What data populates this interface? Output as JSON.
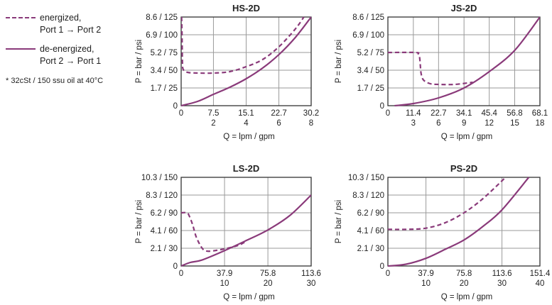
{
  "colors": {
    "series": "#8a3a7a",
    "grid": "#9a9a9a",
    "frame": "#333333"
  },
  "legend": {
    "items": [
      {
        "style": "dashed",
        "line1": "energized,",
        "line2": "Port 1 → Port 2"
      },
      {
        "style": "solid",
        "line1": "de-energized,",
        "line2": "Port 2 → Port 1"
      }
    ],
    "note": "* 32cSt / 150 ssu oil at 40°C"
  },
  "chart_data": [
    {
      "type": "line",
      "title": "HS-2D",
      "xlabel": "Q = lpm / gpm",
      "ylabel": "P = bar / psi",
      "xlim": [
        0,
        30.2
      ],
      "ylim": [
        0,
        125
      ],
      "grid": true,
      "x_ticks": [
        {
          "v": 0,
          "lpm": "0",
          "gpm": ""
        },
        {
          "v": 7.5,
          "lpm": "7.5",
          "gpm": "2"
        },
        {
          "v": 15.1,
          "lpm": "15.1",
          "gpm": "4"
        },
        {
          "v": 22.7,
          "lpm": "22.7",
          "gpm": "6"
        },
        {
          "v": 30.2,
          "lpm": "30.2",
          "gpm": "8"
        }
      ],
      "y_ticks": [
        {
          "v": 0,
          "label": "0"
        },
        {
          "v": 25,
          "label": "1.7 / 25"
        },
        {
          "v": 50,
          "label": "3.4 / 50"
        },
        {
          "v": 75,
          "label": "5.2 / 75"
        },
        {
          "v": 100,
          "label": "6.9 / 100"
        },
        {
          "v": 125,
          "label": "8.6 / 125"
        }
      ],
      "series": [
        {
          "name": "energized, Port 1 → Port 2",
          "style": "dashed",
          "x": [
            0.1,
            0.2,
            0.3,
            0.5,
            1.5,
            4,
            7.5,
            11.3,
            15.1,
            18.9,
            22.7,
            26.5,
            28.5
          ],
          "y": [
            125,
            100,
            60,
            51,
            47,
            46,
            46,
            48,
            55,
            65,
            83,
            108,
            125
          ]
        },
        {
          "name": "de-energized, Port 2 → Port 1",
          "style": "solid",
          "x": [
            0,
            3.8,
            7.5,
            11.3,
            15.1,
            18.9,
            22.7,
            26.5,
            30.2
          ],
          "y": [
            0,
            6,
            16,
            26,
            38,
            53,
            72,
            96,
            125
          ]
        }
      ]
    },
    {
      "type": "line",
      "title": "JS-2D",
      "xlabel": "Q = lpm / gpm",
      "ylabel": "P = bar / psi",
      "xlim": [
        0,
        68.1
      ],
      "ylim": [
        0,
        125
      ],
      "grid": true,
      "x_ticks": [
        {
          "v": 0,
          "lpm": "0",
          "gpm": ""
        },
        {
          "v": 11.4,
          "lpm": "11.4",
          "gpm": "3"
        },
        {
          "v": 22.7,
          "lpm": "22.7",
          "gpm": "6"
        },
        {
          "v": 34.1,
          "lpm": "34.1",
          "gpm": "9"
        },
        {
          "v": 45.4,
          "lpm": "45.4",
          "gpm": "12"
        },
        {
          "v": 56.8,
          "lpm": "56.8",
          "gpm": "15"
        },
        {
          "v": 68.1,
          "lpm": "68.1",
          "gpm": "18"
        }
      ],
      "y_ticks": [
        {
          "v": 0,
          "label": "0"
        },
        {
          "v": 25,
          "label": "1.7 / 25"
        },
        {
          "v": 50,
          "label": "3.4 / 50"
        },
        {
          "v": 75,
          "label": "5.2 / 75"
        },
        {
          "v": 100,
          "label": "6.9 / 100"
        },
        {
          "v": 125,
          "label": "8.6 / 125"
        }
      ],
      "series": [
        {
          "name": "energized, Port 1 → Port 2",
          "style": "dashed",
          "x": [
            0,
            12.5,
            13.6,
            14.2,
            14.5,
            14.9,
            16,
            19,
            22.7,
            30,
            38
          ],
          "y": [
            75,
            75,
            73,
            68,
            58,
            45,
            36,
            31,
            30,
            30,
            33
          ]
        },
        {
          "name": "de-energized, Port 2 → Port 1",
          "style": "solid",
          "x": [
            3,
            11.4,
            22.7,
            34.1,
            45.4,
            56.8,
            68.1
          ],
          "y": [
            0,
            3,
            11,
            25,
            48,
            78,
            125
          ]
        }
      ]
    },
    {
      "type": "line",
      "title": "LS-2D",
      "xlabel": "Q = lpm / gpm",
      "ylabel": "P = bar / psi",
      "xlim": [
        0,
        113.6
      ],
      "ylim": [
        0,
        150
      ],
      "grid": true,
      "x_ticks": [
        {
          "v": 0,
          "lpm": "0",
          "gpm": ""
        },
        {
          "v": 37.9,
          "lpm": "37.9",
          "gpm": "10"
        },
        {
          "v": 75.8,
          "lpm": "75.8",
          "gpm": "20"
        },
        {
          "v": 113.6,
          "lpm": "113.6",
          "gpm": "30"
        }
      ],
      "y_ticks": [
        {
          "v": 0,
          "label": "0"
        },
        {
          "v": 30,
          "label": "2.1 / 30"
        },
        {
          "v": 60,
          "label": "4.1 / 60"
        },
        {
          "v": 90,
          "label": "6.2 / 90"
        },
        {
          "v": 120,
          "label": "8.3 / 120"
        },
        {
          "v": 150,
          "label": "10.3 / 150"
        }
      ],
      "series": [
        {
          "name": "energized, Port 1 → Port 2",
          "style": "dashed",
          "x": [
            0,
            5,
            7,
            10,
            13,
            17,
            20,
            25,
            37.9,
            50,
            56
          ],
          "y": [
            90,
            90,
            85,
            70,
            50,
            34,
            27,
            25,
            29,
            35,
            41
          ]
        },
        {
          "name": "de-energized, Port 2 → Port 1",
          "style": "solid",
          "x": [
            0,
            8,
            18,
            37.9,
            56.8,
            75.8,
            94.7,
            113.6
          ],
          "y": [
            0,
            6,
            10,
            26,
            43,
            61,
            85,
            120
          ]
        }
      ]
    },
    {
      "type": "line",
      "title": "PS-2D",
      "xlabel": "Q = lpm / gpm",
      "ylabel": "P = bar / psi",
      "xlim": [
        0,
        151.4
      ],
      "ylim": [
        0,
        150
      ],
      "grid": true,
      "x_ticks": [
        {
          "v": 0,
          "lpm": "0",
          "gpm": ""
        },
        {
          "v": 37.9,
          "lpm": "37.9",
          "gpm": "10"
        },
        {
          "v": 75.8,
          "lpm": "75.8",
          "gpm": "20"
        },
        {
          "v": 113.6,
          "lpm": "113.6",
          "gpm": "30"
        },
        {
          "v": 151.4,
          "lpm": "151.4",
          "gpm": "40"
        }
      ],
      "y_ticks": [
        {
          "v": 0,
          "label": "0"
        },
        {
          "v": 30,
          "label": "2.1 / 30"
        },
        {
          "v": 60,
          "label": "4.1 / 60"
        },
        {
          "v": 90,
          "label": "6.2 / 90"
        },
        {
          "v": 120,
          "label": "8.3 / 120"
        },
        {
          "v": 150,
          "label": "10.3 / 150"
        }
      ],
      "series": [
        {
          "name": "energized, Port 1 → Port 2",
          "style": "dashed",
          "x": [
            0,
            20,
            37.9,
            56.8,
            75.8,
            94.7,
            117.2
          ],
          "y": [
            62,
            62,
            64,
            73,
            90,
            114,
            150
          ]
        },
        {
          "name": "de-energized, Port 2 → Port 1",
          "style": "solid",
          "x": [
            0,
            18,
            37.9,
            56.8,
            75.8,
            94.7,
            113.6,
            140.3
          ],
          "y": [
            0,
            3,
            13,
            28,
            44,
            67,
            95,
            150
          ]
        }
      ]
    }
  ]
}
